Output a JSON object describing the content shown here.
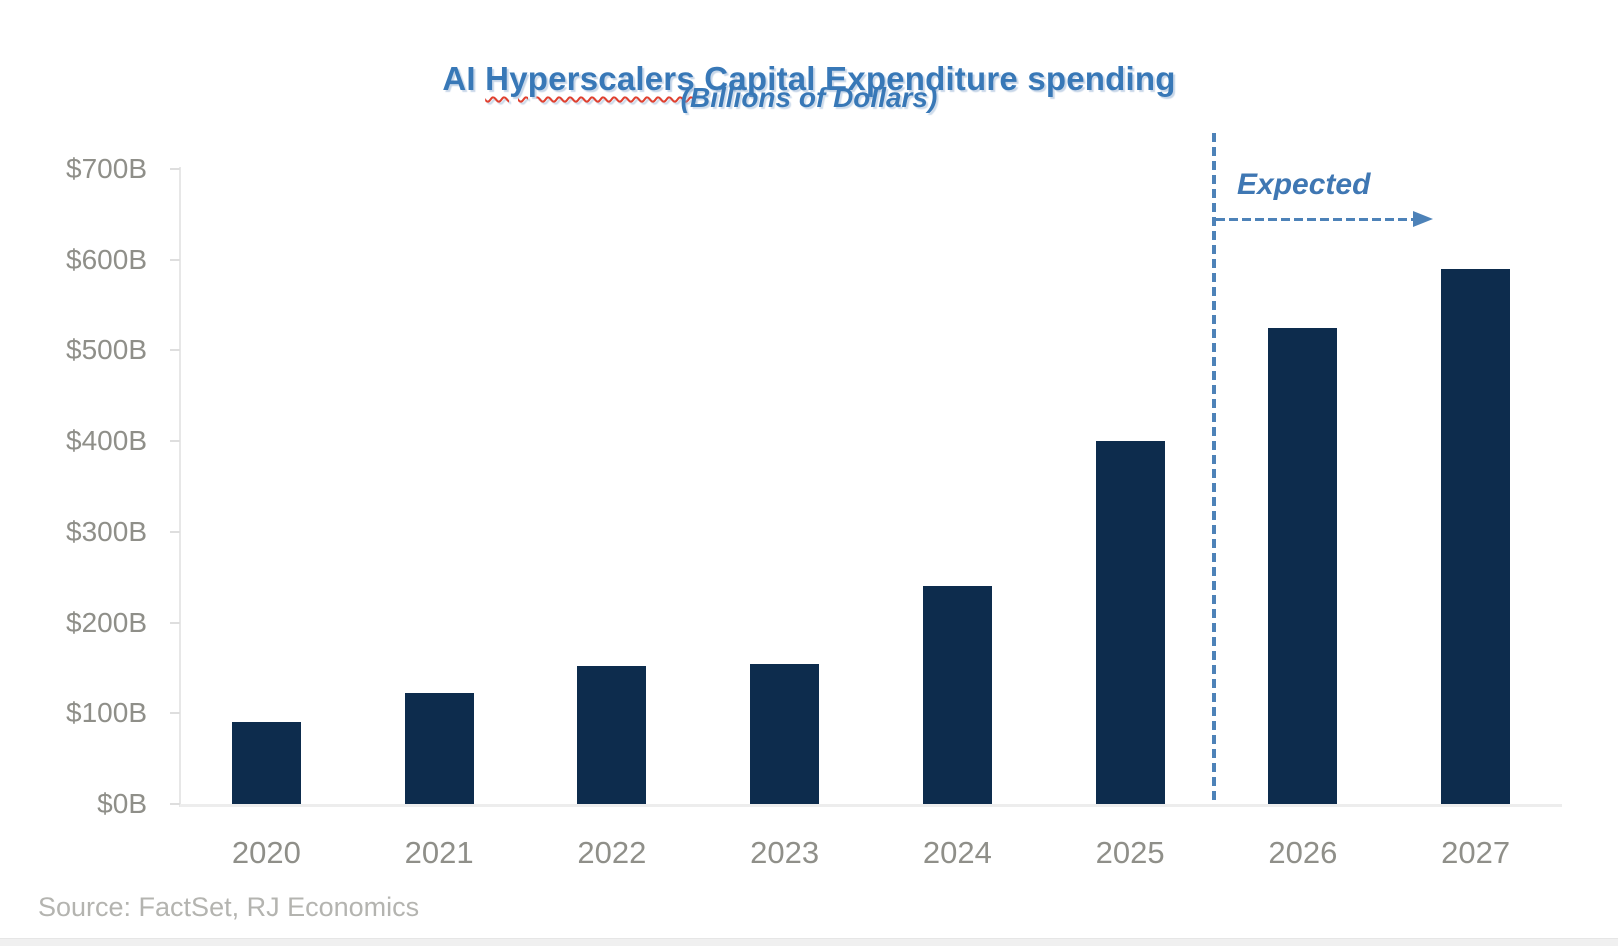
{
  "header": {
    "title_prefix": "AI ",
    "title_misspelled_word": "Hyperscalers",
    "title_suffix": " Capital Expenditure spending",
    "subtitle": "(Billions of Dollars)"
  },
  "annotation": {
    "expected_label": "Expected"
  },
  "source": {
    "text": "Source: FactSet, RJ Economics"
  },
  "colors": {
    "bar": "#0d2c4d",
    "title_blue": "#3878b7",
    "annotation_blue": "#4d82b8",
    "axis_label_gray": "#8f8f89",
    "source_gray": "#b4b4b0",
    "axis_line_gray": "#e7e7e7",
    "tick_gray": "#dedede",
    "squiggle_red": "#e0402f"
  },
  "chart_data": {
    "type": "bar",
    "title": "AI Hyperscalers Capital Expenditure spending",
    "subtitle": "(Billions of Dollars)",
    "unit": "USD billions",
    "categories": [
      "2020",
      "2021",
      "2022",
      "2023",
      "2024",
      "2025",
      "2026",
      "2027"
    ],
    "values": [
      90,
      122,
      152,
      154,
      240,
      400,
      525,
      590
    ],
    "expected_categories": [
      "2026",
      "2027"
    ],
    "annotation": "Expected",
    "xlabel": "",
    "ylabel": "",
    "ylim": [
      0,
      700
    ],
    "ytick_step": 100,
    "ytick_labels": [
      "$0B",
      "$100B",
      "$200B",
      "$300B",
      "$400B",
      "$500B",
      "$600B",
      "$700B"
    ],
    "grid": false,
    "legend_position": "none",
    "source": "Source: FactSet, RJ Economics"
  }
}
